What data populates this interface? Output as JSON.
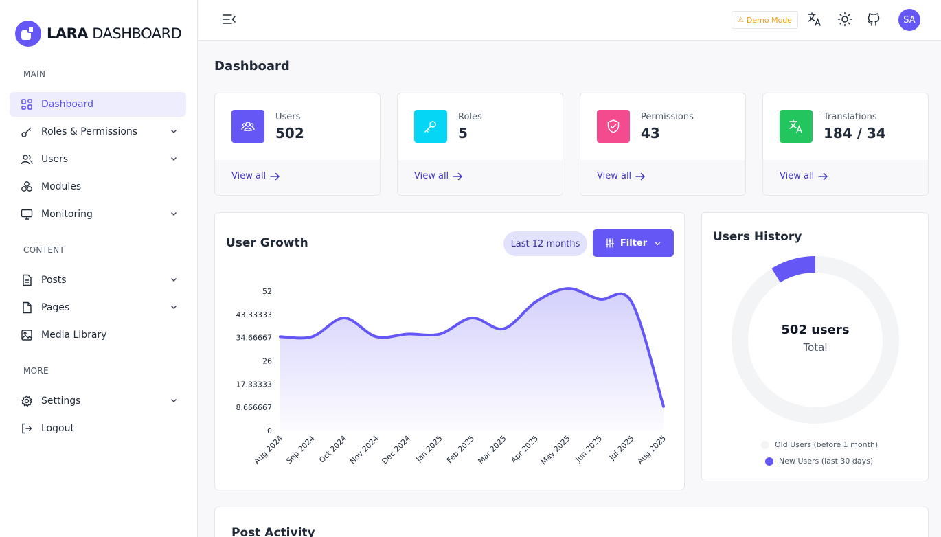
{
  "brand": {
    "bold": "LARA",
    "light": " DASHBOARD"
  },
  "sidebar": {
    "sections": [
      {
        "label": "MAIN"
      },
      {
        "label": "CONTENT"
      },
      {
        "label": "MORE"
      }
    ],
    "items": [
      {
        "label": "Dashboard",
        "icon": "grid-icon",
        "active": true
      },
      {
        "label": "Roles & Permissions",
        "icon": "key-icon",
        "expandable": true
      },
      {
        "label": "Users",
        "icon": "users-icon",
        "expandable": true
      },
      {
        "label": "Modules",
        "icon": "cubes-icon"
      },
      {
        "label": "Monitoring",
        "icon": "monitor-icon",
        "expandable": true
      },
      {
        "label": "Posts",
        "icon": "document-icon",
        "expandable": true
      },
      {
        "label": "Pages",
        "icon": "page-icon",
        "expandable": true
      },
      {
        "label": "Media Library",
        "icon": "image-icon"
      },
      {
        "label": "Settings",
        "icon": "gear-icon",
        "expandable": true
      },
      {
        "label": "Logout",
        "icon": "logout-icon"
      }
    ]
  },
  "header": {
    "demo_mode": "Demo Mode",
    "avatar_initials": "SA"
  },
  "page": {
    "title": "Dashboard"
  },
  "stats": [
    {
      "label": "Users",
      "value": "502",
      "link": "View all",
      "color": "#6457f5",
      "icon": "users-icon"
    },
    {
      "label": "Roles",
      "value": "5",
      "link": "View all",
      "color": "#06d6f5",
      "icon": "key-icon"
    },
    {
      "label": "Permissions",
      "value": "43",
      "link": "View all",
      "color": "#f44b8f",
      "icon": "shield-check-icon"
    },
    {
      "label": "Translations",
      "value": "184 / 34",
      "link": "View all",
      "color": "#22c55e",
      "icon": "translate-icon"
    }
  ],
  "user_growth": {
    "title": "User Growth",
    "range_label": "Last 12 months",
    "filter_label": "Filter"
  },
  "chart_data": {
    "type": "area",
    "x": [
      "Aug 2024",
      "Sep 2024",
      "Oct 2024",
      "Nov 2024",
      "Dec 2024",
      "Jan 2025",
      "Feb 2025",
      "Mar 2025",
      "Apr 2025",
      "May 2025",
      "Jun 2025",
      "Jul 2025",
      "Aug 2025"
    ],
    "values": [
      35,
      35,
      42,
      35,
      36,
      36,
      42,
      38,
      48,
      53,
      49,
      48,
      9
    ],
    "ylim": [
      0,
      52
    ],
    "yticks": [
      "0",
      "8.666667",
      "17.33333",
      "26",
      "34.66667",
      "43.33333",
      "52"
    ],
    "color": "#6457f5"
  },
  "users_history": {
    "title": "Users History",
    "total_label": "502 users",
    "sub_label": "Total",
    "legend": [
      {
        "label": "Old Users (before 1 month)",
        "color": "#f3f4f6"
      },
      {
        "label": "New Users (last 30 days)",
        "color": "#6457f5"
      }
    ],
    "donut": {
      "old": 458,
      "new": 44
    }
  },
  "post_activity": {
    "title": "Post Activity"
  }
}
